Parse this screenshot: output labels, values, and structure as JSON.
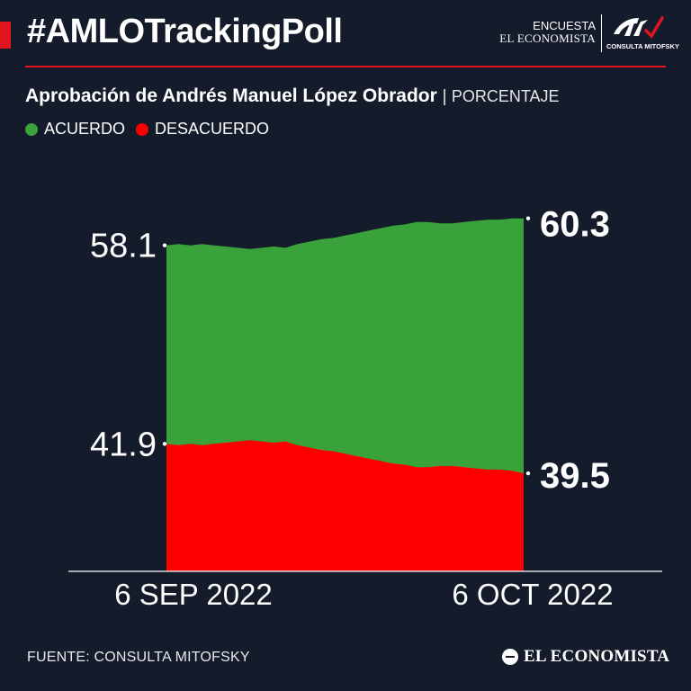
{
  "header": {
    "hashtag": "#AMLOTrackingPoll",
    "encuesta_line1": "ENCUESTA",
    "encuesta_line2": "EL ECONOMISTA",
    "partner_logo": "CONSULTA MITOFSKY"
  },
  "colors": {
    "background": "#141b2a",
    "accent_red": "#e0151f",
    "acuerdo": "#3aa23a",
    "desacuerdo": "#ff0000"
  },
  "chart_data": {
    "type": "area",
    "title": "Aprobación de Andrés Manuel López Obrador",
    "unit": "PORCENTAJE",
    "x_labels": [
      "6 SEP 2022",
      "6 OCT 2022"
    ],
    "x": [
      "2022-09-06",
      "2022-09-07",
      "2022-09-08",
      "2022-09-09",
      "2022-09-10",
      "2022-09-11",
      "2022-09-12",
      "2022-09-13",
      "2022-09-14",
      "2022-09-15",
      "2022-09-16",
      "2022-09-17",
      "2022-09-18",
      "2022-09-19",
      "2022-09-20",
      "2022-09-21",
      "2022-09-22",
      "2022-09-23",
      "2022-09-24",
      "2022-09-25",
      "2022-09-26",
      "2022-09-27",
      "2022-09-28",
      "2022-09-29",
      "2022-09-30",
      "2022-10-01",
      "2022-10-02",
      "2022-10-03",
      "2022-10-04",
      "2022-10-05",
      "2022-10-06"
    ],
    "series": [
      {
        "name": "ACUERDO",
        "color": "#3aa23a",
        "values": [
          58.1,
          58.2,
          58.1,
          58.2,
          58.1,
          58.0,
          57.9,
          57.8,
          57.9,
          58.0,
          57.9,
          58.2,
          58.4,
          58.6,
          58.7,
          58.9,
          59.1,
          59.3,
          59.5,
          59.7,
          59.8,
          60.0,
          60.0,
          59.9,
          59.9,
          60.0,
          60.1,
          60.2,
          60.2,
          60.3,
          60.3
        ],
        "labels": {
          "start": "58.1",
          "end": "60.3"
        }
      },
      {
        "name": "DESACUERDO",
        "color": "#ff0000",
        "values": [
          41.9,
          41.8,
          41.9,
          41.8,
          41.9,
          42.0,
          42.1,
          42.2,
          42.1,
          42.0,
          42.1,
          41.8,
          41.6,
          41.4,
          41.3,
          41.1,
          40.9,
          40.7,
          40.5,
          40.3,
          40.2,
          40.0,
          40.0,
          40.1,
          40.1,
          40.0,
          39.9,
          39.8,
          39.8,
          39.7,
          39.5
        ],
        "labels": {
          "start": "41.9",
          "end": "39.5"
        }
      }
    ],
    "ylim": [
      26,
      62
    ],
    "legend_position": "top-left",
    "grid": false
  },
  "footer": {
    "source": "FUENTE: CONSULTA MITOFSKY",
    "brand": "EL ECONOMISTA"
  }
}
